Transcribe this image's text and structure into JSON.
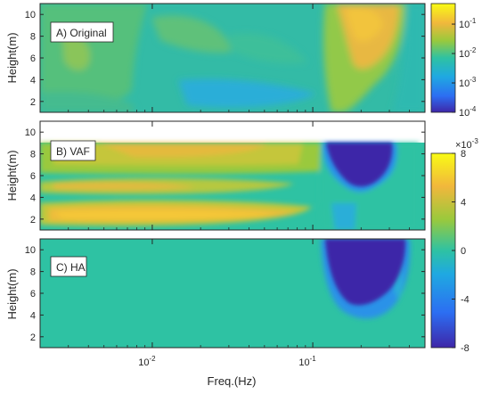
{
  "chart_data": {
    "type": "heatmap",
    "xlabel": "Freq.(Hz)",
    "x_scale": "log",
    "x_tick_labels": [
      "10^-2",
      "10^-1"
    ],
    "x_ticks_display": [
      {
        "base": "10",
        "exp": "-2"
      },
      {
        "base": "10",
        "exp": "-1"
      }
    ],
    "panels": [
      {
        "label": "A) Original",
        "ylabel": "Height(m)",
        "y_ticks": [
          "2",
          "4",
          "6",
          "8",
          "10"
        ],
        "ylim": [
          1,
          11
        ],
        "colorbar": {
          "scale": "log",
          "range": [
            0.0001,
            0.5
          ],
          "tick_labels": [
            {
              "base": "10",
              "exp": "-1"
            },
            {
              "base": "10",
              "exp": "-2"
            },
            {
              "base": "10",
              "exp": "-3"
            },
            {
              "base": "10",
              "exp": "-4"
            }
          ]
        },
        "features": [
          {
            "desc": "high energy",
            "freq_range": [
              0.11,
              0.45
            ],
            "height_range": [
              3,
              11
            ],
            "peak_value": 0.1
          },
          {
            "desc": "moderate energy",
            "freq_range": [
              0.002,
              0.008
            ],
            "height_range": [
              5,
              11
            ],
            "value": 0.01
          }
        ],
        "background_value": 0.005
      },
      {
        "label": "B) VAF",
        "ylabel": "Height(m)",
        "y_ticks": [
          "2",
          "4",
          "6",
          "8",
          "10"
        ],
        "ylim": [
          1,
          11
        ],
        "data_height_max": 9,
        "colorbar_shared_with": "C) HA",
        "features": [
          {
            "desc": "positive band",
            "freq_range": [
              0.002,
              0.05
            ],
            "height_range": [
              1.5,
              3
            ],
            "value": 0.0055
          },
          {
            "desc": "positive band",
            "freq_range": [
              0.002,
              0.04
            ],
            "height_range": [
              3.8,
              4.8
            ],
            "value": 0.0035
          },
          {
            "desc": "positive band",
            "freq_range": [
              0.003,
              0.06
            ],
            "height_range": [
              7,
              9
            ],
            "value": 0.004
          },
          {
            "desc": "negative region",
            "freq_range": [
              0.11,
              0.3
            ],
            "height_range": [
              5,
              9
            ],
            "value": -0.008
          }
        ]
      },
      {
        "label": "C) HA",
        "ylabel": "Height(m)",
        "y_ticks": [
          "2",
          "4",
          "6",
          "8",
          "10"
        ],
        "ylim": [
          1,
          11
        ],
        "colorbar": {
          "scale": "linear",
          "multiplier": {
            "base": "×10",
            "exp": "-3"
          },
          "range": [
            -8,
            8
          ],
          "tick_labels": [
            "8",
            "4",
            "0",
            "-4",
            "-8"
          ]
        },
        "features": [
          {
            "desc": "negative region",
            "freq_range": [
              0.11,
              0.3
            ],
            "height_range": [
              4.5,
              11
            ],
            "value": -0.008
          }
        ],
        "background_value": 0
      }
    ]
  }
}
